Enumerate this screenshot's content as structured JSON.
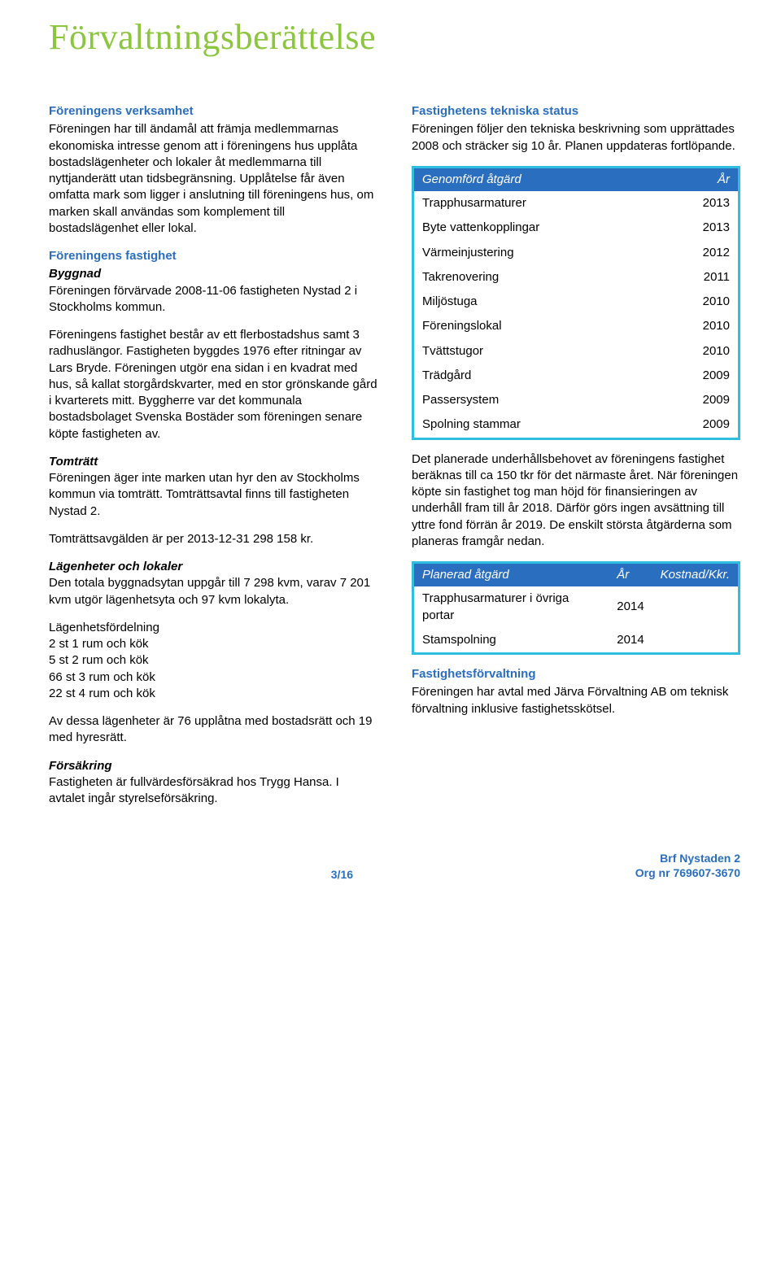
{
  "title": "Förvaltningsberättelse",
  "left": {
    "s1_head": "Föreningens verksamhet",
    "s1_body": "Föreningen har till ändamål att främja medlemmarnas ekonomiska intresse genom att i föreningens hus upplåta bostadslägenheter och lokaler åt medlemmarna till nyttjanderätt utan tidsbegränsning. Upplåtelse får även omfatta mark som ligger i anslutning till föreningens hus, om marken skall användas som komplement till bostadslägenhet eller lokal.",
    "s2_head": "Föreningens fastighet",
    "s2_sub1": "Byggnad",
    "s2_body1": "Föreningen förvärvade 2008-11-06 fastigheten Nystad 2 i Stockholms kommun.",
    "s2_body2": "Föreningens fastighet består av ett flerbostadshus samt 3 radhuslängor. Fastigheten byggdes 1976 efter ritningar av Lars Bryde. Föreningen utgör ena sidan i en kvadrat med hus, så kallat storgårdskvarter, med en stor grönskande gård i kvarterets mitt. Byggherre var det kommunala bostadsbolaget Svenska Bostäder som föreningen senare köpte fastigheten av.",
    "s2_sub2": "Tomträtt",
    "s2_body3": "Föreningen äger inte marken utan hyr den av Stockholms kommun via tomträtt. Tomträttsavtal finns till fastigheten Nystad 2.",
    "s2_body4": "Tomträttsavgälden är per 2013-12-31 298 158 kr.",
    "s2_sub3": "Lägenheter och lokaler",
    "s2_body5": "Den totala byggnadsytan uppgår till 7 298 kvm, varav 7 201 kvm utgör lägenhetsyta och 97 kvm lokalyta.",
    "s2_body6": "Lägenhetsfördelning\n 2 st 1 rum och kök\n 5 st 2 rum och kök\n66 st 3 rum och kök\n22 st 4 rum och kök",
    "s2_body7": "Av dessa lägenheter är 76 upplåtna med bostadsrätt och 19 med hyresrätt.",
    "s2_sub4": "Försäkring",
    "s2_body8": "Fastigheten är fullvärdesförsäkrad hos Trygg Hansa. I avtalet ingår styrelseförsäkring."
  },
  "right": {
    "s1_head": "Fastighetens tekniska status",
    "s1_body": "Föreningen följer den tekniska beskrivning som upprättades 2008 och sträcker sig 10 år. Planen uppdateras fortlöpande.",
    "table1": {
      "head": [
        "Genomförd åtgärd",
        "År"
      ],
      "rows": [
        [
          "Trapphusarmaturer",
          "2013"
        ],
        [
          "Byte vattenkopplingar",
          "2013"
        ],
        [
          "Värmeinjustering",
          "2012"
        ],
        [
          "Takrenovering",
          "2011"
        ],
        [
          "Miljöstuga",
          "2010"
        ],
        [
          "Föreningslokal",
          "2010"
        ],
        [
          "Tvättstugor",
          "2010"
        ],
        [
          "Trädgård",
          "2009"
        ],
        [
          "Passersystem",
          "2009"
        ],
        [
          "Spolning stammar",
          "2009"
        ]
      ]
    },
    "s2_body": "Det planerade underhållsbehovet av föreningens fastighet beräknas till ca 150 tkr för det närmaste året. När föreningen köpte sin fastighet tog man höjd för finansieringen av underhåll fram till år 2018. Därför görs ingen avsättning till yttre fond förrän år 2019. De enskilt största åtgärderna som planeras framgår nedan.",
    "table2": {
      "head": [
        "Planerad åtgärd",
        "År",
        "Kostnad/Kkr."
      ],
      "rows": [
        [
          "Trapphusarmaturer i övriga portar",
          "2014",
          ""
        ],
        [
          "Stamspolning",
          "2014",
          ""
        ]
      ]
    },
    "s3_head": "Fastighetsförvaltning",
    "s3_body": "Föreningen har avtal med Järva Förvaltning AB om teknisk förvaltning inklusive fastighetsskötsel."
  },
  "footer": {
    "page": "3/16",
    "brf": "Brf Nystaden 2",
    "org": "Org nr 769607-3670"
  }
}
